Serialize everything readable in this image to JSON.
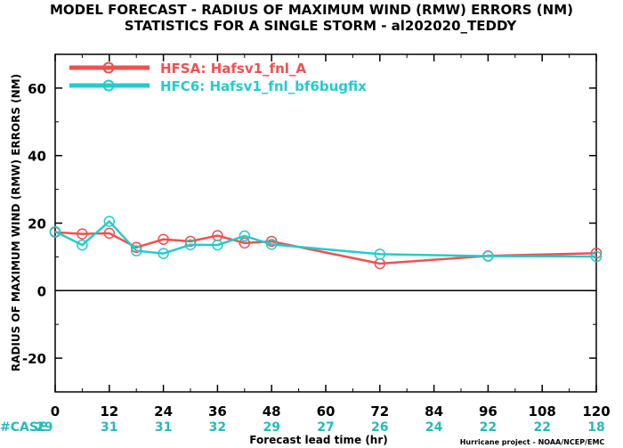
{
  "header": {
    "title_line1": "MODEL FORECAST - RADIUS OF MAXIMUM WIND (RMW) ERRORS (NM)",
    "title_line2": "STATISTICS FOR A SINGLE STORM - al202020_TEDDY"
  },
  "footer": {
    "credit": "Hurricane project - NOAA/NCEP/EMC"
  },
  "colors": {
    "hfsa": "#f05050",
    "hfc6": "#22cccc",
    "case": "#22bbbb"
  },
  "chart_data": {
    "type": "line",
    "xlabel": "Forecast lead time (hr)",
    "ylabel": "RADIUS OF MAXIMUM WIND (RMW) ERRORS (NM)",
    "xlim": [
      0,
      120
    ],
    "ylim": [
      -30,
      70
    ],
    "xticks": [
      0,
      12,
      24,
      36,
      48,
      60,
      72,
      84,
      96,
      108,
      120
    ],
    "xtick_labels": [
      "0",
      "12",
      "24",
      "36",
      "48",
      "60",
      "72",
      "84",
      "96",
      "108",
      "120"
    ],
    "yticks": [
      -20,
      0,
      20,
      40,
      60
    ],
    "ytick_labels": [
      "-20",
      "0",
      "20",
      "40",
      "60"
    ],
    "zero_line": true,
    "grid": false,
    "legend_position": "top-left",
    "series": [
      {
        "name": "HFSA: Hafsv1_fnl_A",
        "x": [
          0,
          6,
          12,
          18,
          24,
          30,
          36,
          42,
          48,
          72,
          96,
          120
        ],
        "values": [
          17.3,
          16.8,
          17.0,
          12.8,
          15.2,
          14.6,
          16.3,
          14.1,
          14.6,
          8.0,
          10.3,
          11.1
        ]
      },
      {
        "name": "HFC6: Hafsv1_fnl_bf6bugfix",
        "x": [
          0,
          6,
          12,
          18,
          24,
          30,
          36,
          42,
          48,
          72,
          96,
          120
        ],
        "values": [
          17.5,
          13.5,
          20.5,
          11.8,
          11.0,
          13.6,
          13.5,
          16.2,
          13.7,
          10.8,
          10.2,
          10.1
        ]
      }
    ],
    "case_label": "#CASE",
    "cases": [
      {
        "x": 0,
        "label": "29"
      },
      {
        "x": 12,
        "label": "31"
      },
      {
        "x": 24,
        "label": "31"
      },
      {
        "x": 36,
        "label": "32"
      },
      {
        "x": 48,
        "label": "29"
      },
      {
        "x": 60,
        "label": "27"
      },
      {
        "x": 72,
        "label": "26"
      },
      {
        "x": 84,
        "label": "24"
      },
      {
        "x": 96,
        "label": "22"
      },
      {
        "x": 108,
        "label": "22"
      },
      {
        "x": 120,
        "label": "18"
      }
    ]
  }
}
